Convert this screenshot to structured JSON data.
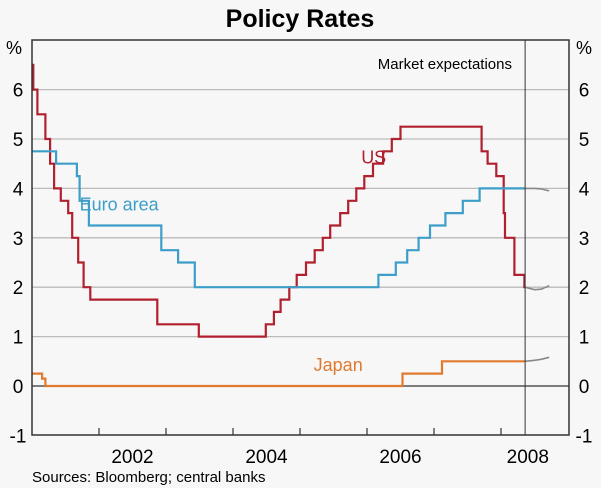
{
  "chart_data": {
    "type": "line",
    "title": "Policy Rates",
    "ylabel_left": "%",
    "ylabel_right": "%",
    "xlabel": "",
    "ylim": [
      -1,
      7
    ],
    "xlim": [
      2001.0,
      2008.95
    ],
    "yticks": [
      -1,
      0,
      1,
      2,
      3,
      4,
      5,
      6
    ],
    "ytick_labels": [
      "-1",
      "0",
      "1",
      "2",
      "3",
      "4",
      "5",
      "6"
    ],
    "xtick_positions": [
      2002,
      2003,
      2004,
      2005,
      2006,
      2007,
      2008
    ],
    "xtick_labels": [
      {
        "label": "2002",
        "center": 2002.5
      },
      {
        "label": "2004",
        "center": 2004.5
      },
      {
        "label": "2006",
        "center": 2006.5
      },
      {
        "label": "2008",
        "center": 2008.4
      }
    ],
    "grid": true,
    "divider_x": 2008.36,
    "annotation": "Market expectations",
    "source": "Sources: Bloomberg; central banks",
    "series": [
      {
        "name": "US",
        "color": "#b0202e",
        "label_at": [
          2006.1,
          4.5
        ],
        "step": true,
        "points": [
          [
            2001.0,
            6.5
          ],
          [
            2001.02,
            6.0
          ],
          [
            2001.08,
            5.5
          ],
          [
            2001.2,
            5.0
          ],
          [
            2001.27,
            4.5
          ],
          [
            2001.33,
            4.0
          ],
          [
            2001.43,
            3.75
          ],
          [
            2001.54,
            3.5
          ],
          [
            2001.6,
            3.0
          ],
          [
            2001.69,
            2.5
          ],
          [
            2001.77,
            2.0
          ],
          [
            2001.87,
            1.75
          ],
          [
            2002.87,
            1.25
          ],
          [
            2003.49,
            1.0
          ],
          [
            2004.49,
            1.25
          ],
          [
            2004.61,
            1.5
          ],
          [
            2004.71,
            1.75
          ],
          [
            2004.84,
            2.0
          ],
          [
            2004.95,
            2.25
          ],
          [
            2005.09,
            2.5
          ],
          [
            2005.22,
            2.75
          ],
          [
            2005.34,
            3.0
          ],
          [
            2005.45,
            3.25
          ],
          [
            2005.6,
            3.5
          ],
          [
            2005.72,
            3.75
          ],
          [
            2005.84,
            4.0
          ],
          [
            2005.96,
            4.25
          ],
          [
            2006.09,
            4.5
          ],
          [
            2006.24,
            4.75
          ],
          [
            2006.37,
            5.0
          ],
          [
            2006.5,
            5.25
          ],
          [
            2007.71,
            4.75
          ],
          [
            2007.8,
            4.5
          ],
          [
            2007.93,
            4.25
          ],
          [
            2008.04,
            3.5
          ],
          [
            2008.06,
            3.0
          ],
          [
            2008.2,
            2.25
          ],
          [
            2008.35,
            2.0
          ],
          [
            2008.36,
            2.0
          ]
        ]
      },
      {
        "name": "Euro area",
        "color": "#3d9ec9",
        "label_at": [
          2002.3,
          3.55
        ],
        "step": true,
        "points": [
          [
            2001.0,
            4.75
          ],
          [
            2001.36,
            4.5
          ],
          [
            2001.67,
            4.25
          ],
          [
            2001.71,
            3.75
          ],
          [
            2001.85,
            3.25
          ],
          [
            2002.93,
            2.75
          ],
          [
            2003.18,
            2.5
          ],
          [
            2003.43,
            2.0
          ],
          [
            2006.17,
            2.25
          ],
          [
            2006.43,
            2.5
          ],
          [
            2006.6,
            2.75
          ],
          [
            2006.77,
            3.0
          ],
          [
            2006.94,
            3.25
          ],
          [
            2007.17,
            3.5
          ],
          [
            2007.43,
            3.75
          ],
          [
            2007.68,
            4.0
          ],
          [
            2008.36,
            4.0
          ]
        ]
      },
      {
        "name": "Japan",
        "color": "#e07a2e",
        "label_at": [
          2005.57,
          0.3
        ],
        "step": true,
        "points": [
          [
            2001.0,
            0.25
          ],
          [
            2001.15,
            0.15
          ],
          [
            2001.2,
            0.0
          ],
          [
            2006.53,
            0.25
          ],
          [
            2007.12,
            0.5
          ],
          [
            2008.36,
            0.5
          ]
        ]
      },
      {
        "name": "US market expectations",
        "color": "#888888",
        "step": false,
        "points": [
          [
            2008.36,
            2.0
          ],
          [
            2008.5,
            1.95
          ],
          [
            2008.6,
            1.96
          ],
          [
            2008.72,
            2.03
          ]
        ]
      },
      {
        "name": "Euro area market expectations",
        "color": "#888888",
        "step": false,
        "points": [
          [
            2008.36,
            4.0
          ],
          [
            2008.5,
            4.0
          ],
          [
            2008.6,
            3.99
          ],
          [
            2008.72,
            3.95
          ]
        ]
      },
      {
        "name": "Japan market expectations",
        "color": "#888888",
        "step": false,
        "points": [
          [
            2008.36,
            0.5
          ],
          [
            2008.5,
            0.52
          ],
          [
            2008.6,
            0.54
          ],
          [
            2008.72,
            0.58
          ]
        ]
      }
    ]
  }
}
